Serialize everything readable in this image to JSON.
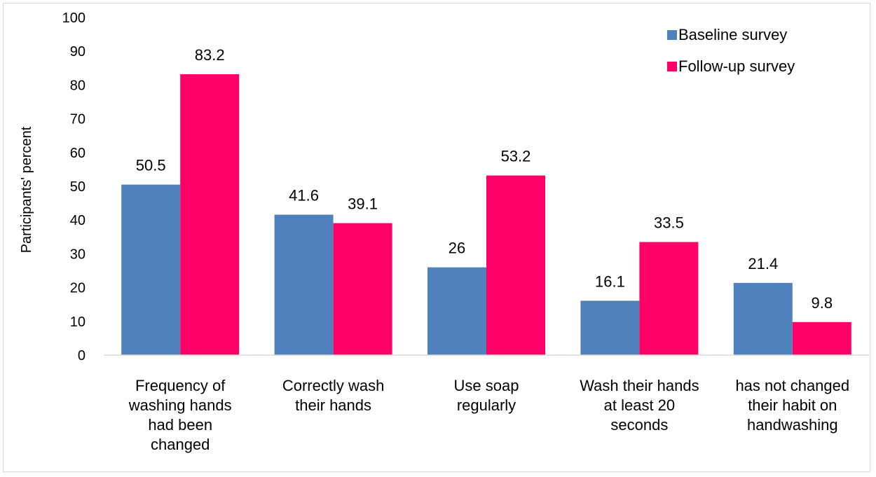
{
  "chart_data": {
    "type": "bar",
    "title": "",
    "xlabel": "",
    "ylabel": "Participants' percent",
    "ylim": [
      0,
      100
    ],
    "yticks": [
      "0",
      "10",
      "20",
      "30",
      "40",
      "50",
      "60",
      "70",
      "80",
      "90",
      "100"
    ],
    "grid": false,
    "legend_position": "top-right",
    "categories": [
      [
        "Frequency of",
        "washing hands",
        "had been",
        "changed"
      ],
      [
        "Correctly wash",
        "their hands"
      ],
      [
        "Use soap",
        "regularly"
      ],
      [
        "Wash their hands",
        "at least 20",
        "seconds"
      ],
      [
        "has not changed",
        "their habit on",
        "handwashing"
      ]
    ],
    "series": [
      {
        "name": "Baseline survey",
        "color": "#4F81BD",
        "values": [
          50.5,
          41.6,
          26,
          16.1,
          21.4
        ],
        "labels": [
          "50.5",
          "41.6",
          "26",
          "16.1",
          "21.4"
        ]
      },
      {
        "name": "Follow-up survey",
        "color": "#FF0066",
        "values": [
          83.2,
          39.1,
          53.2,
          33.5,
          9.8
        ],
        "labels": [
          "83.2",
          "39.1",
          "53.2",
          "33.5",
          "9.8"
        ]
      }
    ]
  }
}
